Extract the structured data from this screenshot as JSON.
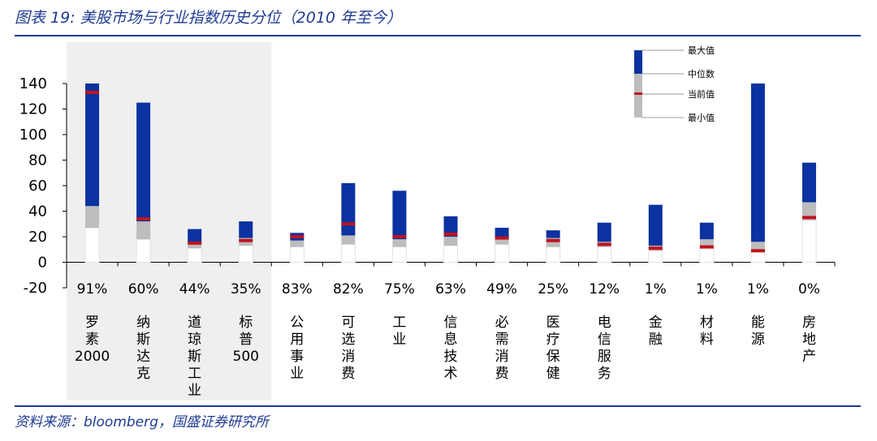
{
  "title": "图表 19: 美股市场与行业指数历史分位（2010 年至今）",
  "source": "资料来源：bloomberg，国盛证券研究所",
  "colors": {
    "max_segment": "#0b32a0",
    "median_segment": "#bdbdbd",
    "min_segment": "#ffffff",
    "current_marker": "#c0131d",
    "highlight_band": "#efefef",
    "rule": "#1f3a93"
  },
  "legend": {
    "max_label": "最大值",
    "median_label": "中位数",
    "current_label": "当前值",
    "min_label": "最小值"
  },
  "chart_data": {
    "type": "bar",
    "subtype": "stacked-range-with-marker",
    "ylim": [
      -20,
      140
    ],
    "yticks": [
      "140",
      "120",
      "100",
      "80",
      "60",
      "40",
      "20",
      "0",
      "-20"
    ],
    "highlighted_groups": 4,
    "categories": [
      {
        "label": "罗素2000",
        "label_lines": [
          "罗",
          "素",
          "2000"
        ],
        "percentile": "91%",
        "min": 27,
        "median": 44,
        "max": 140,
        "current": 133
      },
      {
        "label": "纳斯达克",
        "label_lines": [
          "纳",
          "斯",
          "达",
          "克"
        ],
        "percentile": "60%",
        "min": 18,
        "median": 32,
        "max": 125,
        "current": 34
      },
      {
        "label": "道琼斯工业",
        "label_lines": [
          "道",
          "琼",
          "斯",
          "工",
          "业"
        ],
        "percentile": "44%",
        "min": 11,
        "median": 16,
        "max": 26,
        "current": 15
      },
      {
        "label": "标普500",
        "label_lines": [
          "标",
          "普",
          "500"
        ],
        "percentile": "35%",
        "min": 13,
        "median": 19,
        "max": 32,
        "current": 17
      },
      {
        "label": "公用事业",
        "label_lines": [
          "公",
          "用",
          "事",
          "业"
        ],
        "percentile": "83%",
        "min": 12,
        "median": 17,
        "max": 23,
        "current": 20
      },
      {
        "label": "可选消费",
        "label_lines": [
          "可",
          "选",
          "消",
          "费"
        ],
        "percentile": "82%",
        "min": 14,
        "median": 21,
        "max": 62,
        "current": 30
      },
      {
        "label": "工业",
        "label_lines": [
          "工",
          "业"
        ],
        "percentile": "75%",
        "min": 12,
        "median": 18,
        "max": 56,
        "current": 20
      },
      {
        "label": "信息技术",
        "label_lines": [
          "信",
          "息",
          "技",
          "术"
        ],
        "percentile": "63%",
        "min": 13,
        "median": 20,
        "max": 36,
        "current": 22
      },
      {
        "label": "必需消费",
        "label_lines": [
          "必",
          "需",
          "消",
          "费"
        ],
        "percentile": "49%",
        "min": 14,
        "median": 19,
        "max": 27,
        "current": 19
      },
      {
        "label": "医疗保健",
        "label_lines": [
          "医",
          "疗",
          "保",
          "健"
        ],
        "percentile": "25%",
        "min": 12,
        "median": 19,
        "max": 25,
        "current": 17
      },
      {
        "label": "电信服务",
        "label_lines": [
          "电",
          "信",
          "服",
          "务"
        ],
        "percentile": "12%",
        "min": 12,
        "median": 16,
        "max": 31,
        "current": 14
      },
      {
        "label": "金融",
        "label_lines": [
          "金",
          "融"
        ],
        "percentile": "1%",
        "min": 9,
        "median": 13,
        "max": 45,
        "current": 11
      },
      {
        "label": "材料",
        "label_lines": [
          "材",
          "料"
        ],
        "percentile": "1%",
        "min": 11,
        "median": 18,
        "max": 31,
        "current": 12
      },
      {
        "label": "能源",
        "label_lines": [
          "能",
          "源"
        ],
        "percentile": "1%",
        "min": 9,
        "median": 16,
        "max": 140,
        "current": 9
      },
      {
        "label": "房地产",
        "label_lines": [
          "房",
          "地",
          "产"
        ],
        "percentile": "0%",
        "min": 33,
        "median": 47,
        "max": 78,
        "current": 35
      }
    ]
  }
}
